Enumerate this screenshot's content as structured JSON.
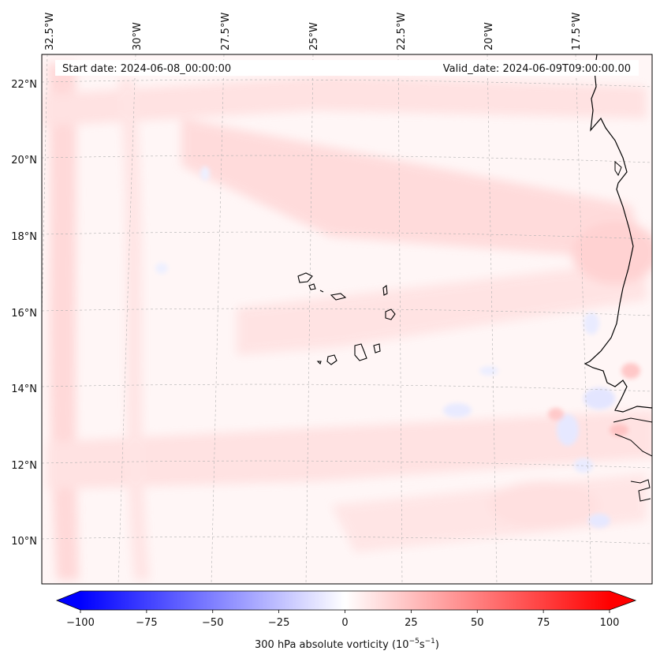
{
  "header": {
    "start_date": "Start date: 2024-06-08_00:00:00",
    "valid_date": "Valid_date: 2024-06-09T09:00:00.00"
  },
  "longitude_labels": [
    "32.5°W",
    "30°W",
    "27.5°W",
    "25°W",
    "22.5°W",
    "20°W",
    "17.5°W"
  ],
  "latitude_labels": [
    "22°N",
    "20°N",
    "18°N",
    "16°N",
    "14°N",
    "12°N",
    "10°N"
  ],
  "colorbar": {
    "label_text": "300 hPa absolute vorticity (10",
    "exp1": "−5",
    "mid": "s",
    "exp2": "−1",
    "close": ")",
    "min": -100,
    "max": 100,
    "ticks": [
      "−100",
      "−75",
      "−50",
      "−25",
      "0",
      "25",
      "50",
      "75",
      "100"
    ],
    "colormap": "bwr",
    "extend": "both"
  },
  "colors": {
    "negative": "#0000ff",
    "zero": "#ffffff",
    "positive": "#ff0000",
    "coastline": "#000000",
    "gridline": "#b0b0b0"
  }
}
